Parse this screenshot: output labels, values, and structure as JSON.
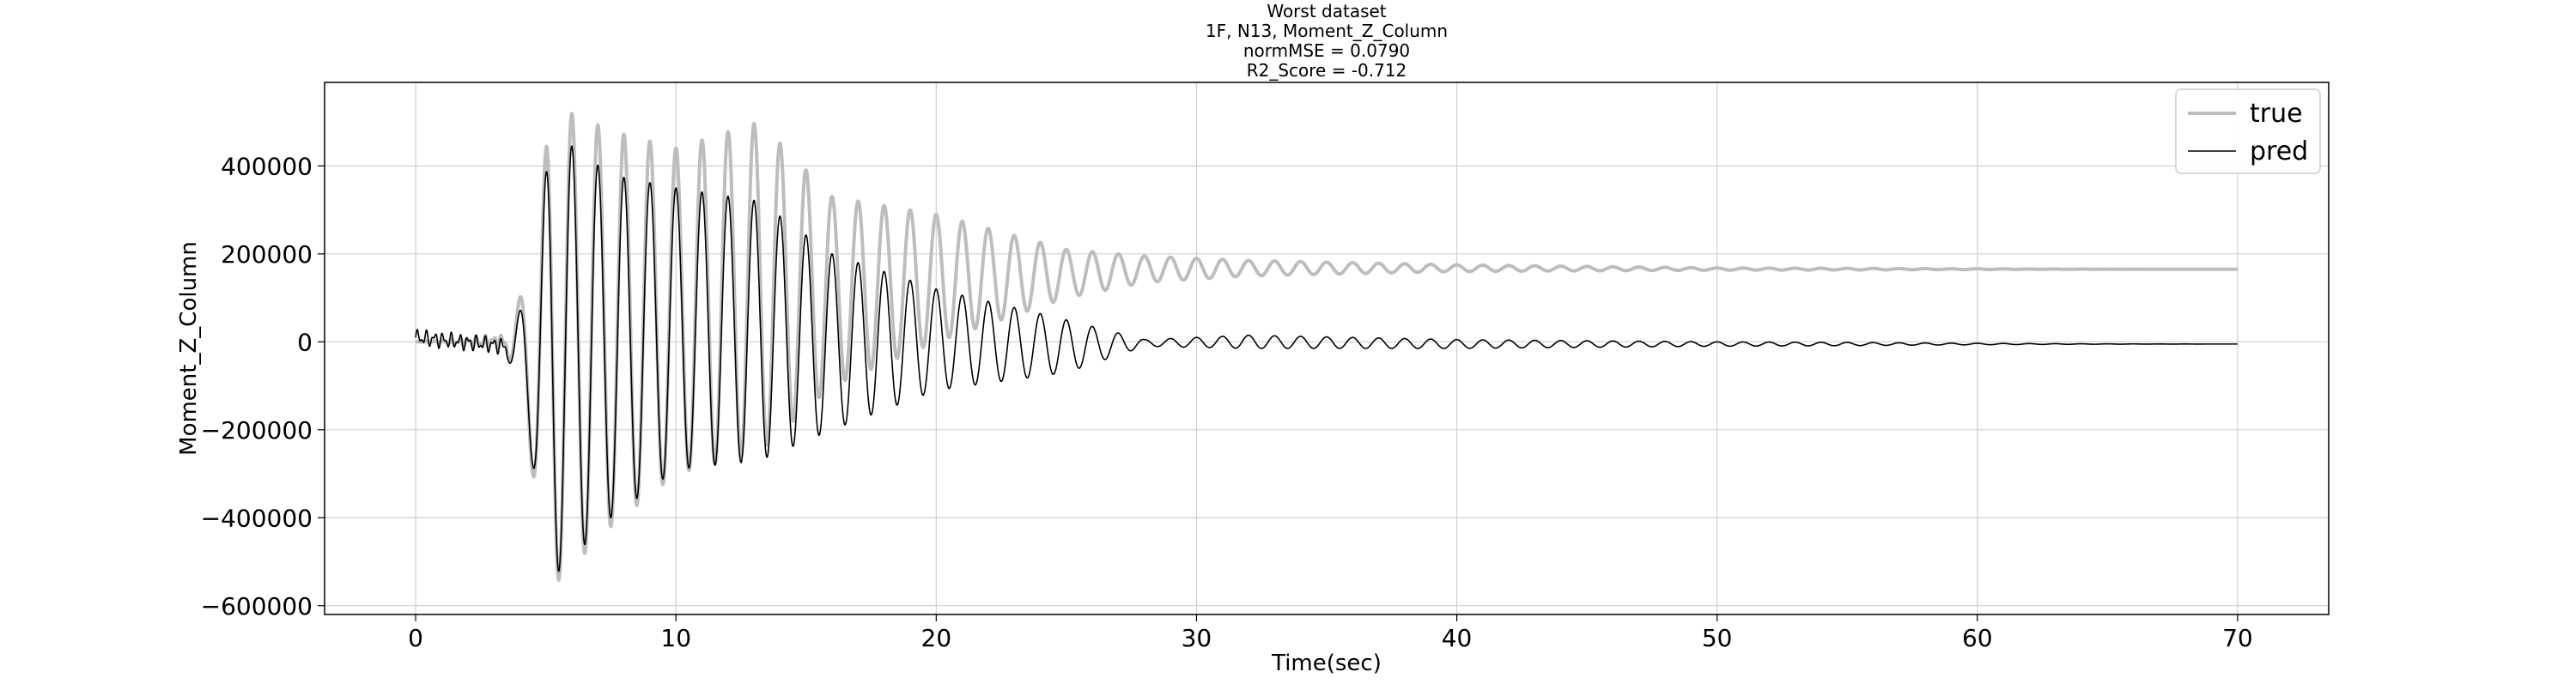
{
  "chart_data": {
    "type": "line",
    "title_lines": [
      "Worst dataset",
      "1F, N13, Moment_Z_Column",
      "normMSE = 0.0790",
      "R2_Score = -0.712"
    ],
    "xlabel": "Time(sec)",
    "ylabel": "Moment_Z_Column",
    "xlim": [
      -3.5,
      73.5
    ],
    "ylim": [
      -620000,
      590000
    ],
    "x_ticks": [
      0,
      10,
      20,
      30,
      40,
      50,
      60,
      70
    ],
    "x_tick_labels": [
      "0",
      "10",
      "20",
      "30",
      "40",
      "50",
      "60",
      "70"
    ],
    "y_ticks": [
      -600000,
      -400000,
      -200000,
      0,
      200000,
      400000
    ],
    "y_tick_labels": [
      "−600000",
      "−400000",
      "−200000",
      "0",
      "200000",
      "400000"
    ],
    "grid": true,
    "legend_position": "top-right",
    "series": [
      {
        "name": "true",
        "color": "#bdbdbd",
        "baseline": 0,
        "settle": 165000,
        "envelope": {
          "t": [
            0,
            3.5,
            4.5,
            5.2,
            7.5,
            10,
            13.2,
            16,
            20,
            25,
            28,
            32,
            40,
            50,
            70
          ],
          "top": [
            0,
            20000,
            180000,
            540000,
            480000,
            440000,
            500000,
            330000,
            290000,
            210000,
            195000,
            185000,
            175000,
            168000,
            165000
          ],
          "bottom": [
            0,
            -20000,
            -300000,
            -560000,
            -420000,
            -300000,
            -250000,
            -100000,
            0,
            100000,
            135000,
            150000,
            160000,
            163000,
            165000
          ]
        }
      },
      {
        "name": "pred",
        "color": "#000000",
        "baseline": 0,
        "settle": -5000,
        "envelope": {
          "t": [
            0,
            3.5,
            4.5,
            5.2,
            7.5,
            10,
            13.2,
            16,
            20,
            25,
            28,
            32,
            40,
            50,
            70
          ],
          "top": [
            30000,
            10000,
            130000,
            480000,
            380000,
            350000,
            320000,
            200000,
            120000,
            50000,
            5000,
            15000,
            5000,
            0,
            -5000
          ],
          "bottom": [
            -10000,
            -30000,
            -280000,
            -540000,
            -400000,
            -290000,
            -270000,
            -200000,
            -110000,
            -70000,
            -10000,
            -15000,
            -15000,
            -10000,
            -5000
          ]
        }
      }
    ]
  }
}
